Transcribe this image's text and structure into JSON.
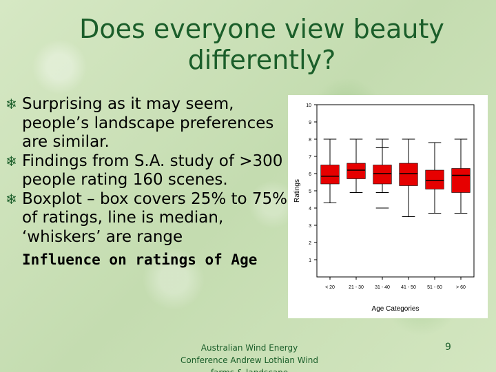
{
  "title": "Does everyone view beauty differently?",
  "bullets": [
    "Surprising as it may seem, people’s landscape preferences are similar.",
    "Findings from S.A. study of >300 people rating 160 scenes.",
    "Boxplot – box covers  25% to 75% of ratings, line is median, ‘whiskers’ are range"
  ],
  "bold_line": "Influence on ratings of Age",
  "footer": "Australian Wind Energy Conference Andrew Lothian Wind farms & landscape",
  "page_number": "9",
  "bullet_icon": "snowflake-icon",
  "colors": {
    "title": "#1b5e2a",
    "box": "#e60000"
  },
  "chart_data": {
    "type": "box",
    "xlabel": "Age Categories",
    "ylabel": "Ratings",
    "ylim": [
      0,
      10
    ],
    "y_ticks": [
      1,
      2,
      3,
      4,
      5,
      6,
      7,
      8,
      9,
      10
    ],
    "categories": [
      "< 20",
      "21 - 30",
      "31 - 40",
      "41 - 50",
      "51 - 60",
      "> 60"
    ],
    "boxes": [
      {
        "min": 4.3,
        "q1": 5.4,
        "median": 5.85,
        "q3": 6.5,
        "max": 8.0
      },
      {
        "min": 4.9,
        "q1": 5.7,
        "median": 6.2,
        "q3": 6.6,
        "max": 8.0
      },
      {
        "min": 4.9,
        "q1": 5.4,
        "median": 6.0,
        "q3": 6.5,
        "max": 8.0
      },
      {
        "min": 3.5,
        "q1": 5.3,
        "median": 6.0,
        "q3": 6.6,
        "max": 8.0
      },
      {
        "min": 3.7,
        "q1": 5.1,
        "median": 5.6,
        "q3": 6.2,
        "max": 7.8
      },
      {
        "min": 3.7,
        "q1": 4.9,
        "median": 5.9,
        "q3": 6.3,
        "max": 8.0
      }
    ],
    "extra_marks": [
      {
        "category": 2,
        "value": 7.5
      },
      {
        "category": 2,
        "value": 4.0
      }
    ]
  }
}
